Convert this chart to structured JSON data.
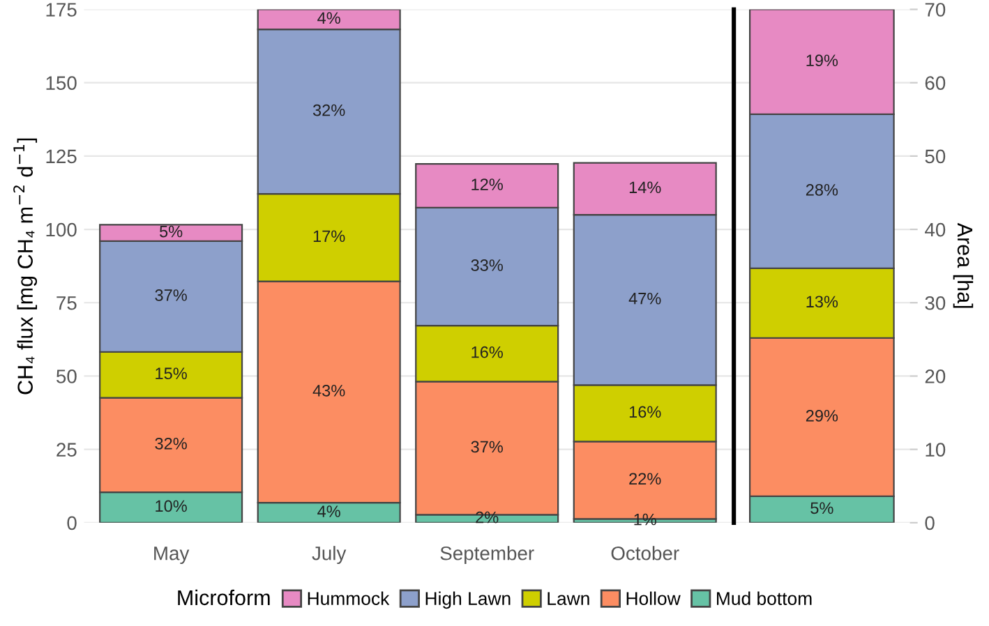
{
  "chart_data": [
    {
      "type": "bar",
      "stacked": true,
      "ylabel": "CH₄ flux [mg CH₄ m$^{−2}$ d$^{−1}$]",
      "legend_title": "Microform",
      "legend": "bottom",
      "grid": "y",
      "categories": [
        "May",
        "July",
        "September",
        "October"
      ],
      "ylim": [
        0,
        175
      ],
      "yticks": [
        0,
        25,
        50,
        75,
        100,
        125,
        150,
        175
      ],
      "series": [
        {
          "name": "Mud bottom",
          "color": "#66c2a5",
          "values": [
            10.4,
            6.8,
            2.7,
            1.3
          ]
        },
        {
          "name": "Hollow",
          "color": "#fc8d62",
          "values": [
            32.2,
            75.5,
            45.4,
            26.4
          ]
        },
        {
          "name": "Lawn",
          "color": "#cfcf00",
          "values": [
            15.6,
            29.8,
            19.1,
            19.2
          ]
        },
        {
          "name": "High Lawn",
          "color": "#8da0cb",
          "values": [
            37.8,
            56.1,
            40.2,
            58.1
          ]
        },
        {
          "name": "Hummock",
          "color": "#e78ac3",
          "values": [
            5.6,
            6.8,
            14.9,
            17.7
          ]
        }
      ],
      "annotations": [
        "10%",
        "32%",
        "15%",
        "37%",
        "5%",
        "4%",
        "43%",
        "17%",
        "32%",
        "4%",
        "2%",
        "37%",
        "16%",
        "33%",
        "12%",
        "1%",
        "22%",
        "16%",
        "47%",
        "14%"
      ]
    },
    {
      "type": "bar",
      "stacked": true,
      "ylabel": "Area [ha]",
      "grid": "y",
      "categories": [
        null
      ],
      "ylim": [
        0,
        70
      ],
      "yticks": [
        0,
        10,
        20,
        30,
        40,
        50,
        60,
        70
      ],
      "series": [
        {
          "color": "#66c2a5",
          "values": [
            3.6
          ]
        },
        {
          "color": "#fc8d62",
          "values": [
            21.6
          ]
        },
        {
          "color": "#cfcf00",
          "values": [
            9.5
          ]
        },
        {
          "color": "#8da0cb",
          "values": [
            21.0
          ]
        },
        {
          "color": "#e78ac3",
          "values": [
            14.3
          ]
        }
      ],
      "annotations": [
        "5%",
        "29%",
        "13%",
        "28%",
        "19%"
      ]
    }
  ]
}
